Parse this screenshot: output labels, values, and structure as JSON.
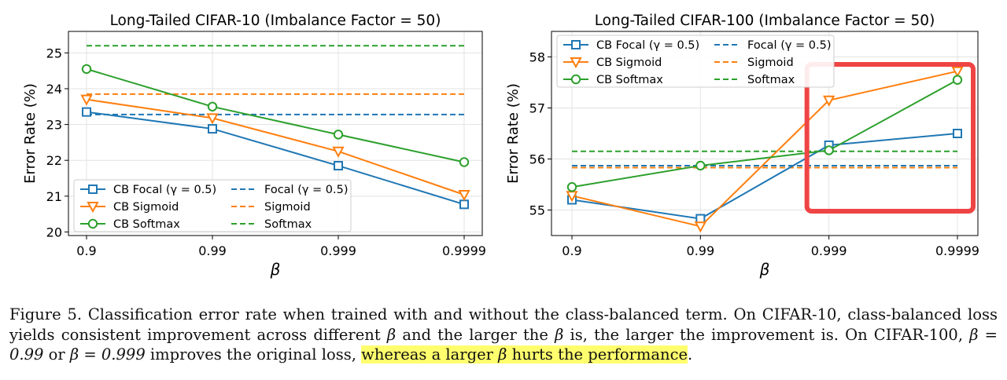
{
  "colors": {
    "focal": "#1f77b4",
    "sigmoid": "#ff7f0e",
    "softmax": "#2ca02c",
    "highlight_box": "#ef4444",
    "caption_highlight": "#ffff6e"
  },
  "chart_data": [
    {
      "type": "line",
      "title": "Long-Tailed CIFAR-10 (Imbalance Factor = 50)",
      "xlabel": "β",
      "ylabel": "Error Rate (%)",
      "x": [
        "0.9",
        "0.99",
        "0.999",
        "0.9999"
      ],
      "ylim": [
        19.9,
        25.6
      ],
      "yticks": [
        20,
        21,
        22,
        23,
        24,
        25
      ],
      "grid": true,
      "legend": "lower-left",
      "series": [
        {
          "name": "CB Focal (γ = 0.5)",
          "key": "focal",
          "marker": "square",
          "values": [
            23.35,
            22.88,
            21.85,
            20.77
          ]
        },
        {
          "name": "CB Sigmoid",
          "key": "sigmoid",
          "marker": "triangle-down",
          "values": [
            23.7,
            23.18,
            22.25,
            21.04
          ]
        },
        {
          "name": "CB Softmax",
          "key": "softmax",
          "marker": "circle",
          "values": [
            24.55,
            23.5,
            22.72,
            21.95
          ]
        }
      ],
      "baselines": [
        {
          "name": "Focal (γ = 0.5)",
          "key": "focal",
          "value": 23.28
        },
        {
          "name": "Sigmoid",
          "key": "sigmoid",
          "value": 23.85
        },
        {
          "name": "Softmax",
          "key": "softmax",
          "value": 25.2
        }
      ]
    },
    {
      "type": "line",
      "title": "Long-Tailed CIFAR-100 (Imbalance Factor = 50)",
      "xlabel": "β",
      "ylabel": "Error Rate (%)",
      "x": [
        "0.9",
        "0.99",
        "0.999",
        "0.9999"
      ],
      "ylim": [
        54.5,
        58.5
      ],
      "yticks": [
        55,
        56,
        57,
        58
      ],
      "grid": true,
      "legend": "upper-left",
      "highlight": {
        "x_from": "0.999",
        "x_to": "0.9999"
      },
      "series": [
        {
          "name": "CB Focal (γ = 0.5)",
          "key": "focal",
          "marker": "square",
          "values": [
            55.2,
            54.83,
            56.27,
            56.5
          ]
        },
        {
          "name": "CB Sigmoid",
          "key": "sigmoid",
          "marker": "triangle-down",
          "values": [
            55.28,
            54.68,
            57.15,
            57.72
          ]
        },
        {
          "name": "CB Softmax",
          "key": "softmax",
          "marker": "circle",
          "values": [
            55.45,
            55.87,
            56.17,
            57.55
          ]
        }
      ],
      "baselines": [
        {
          "name": "Focal (γ = 0.5)",
          "key": "focal",
          "value": 55.87
        },
        {
          "name": "Sigmoid",
          "key": "sigmoid",
          "value": 55.83
        },
        {
          "name": "Softmax",
          "key": "softmax",
          "value": 56.15
        }
      ]
    }
  ],
  "caption": {
    "label": "Figure 5.",
    "part1": " Classification error rate when trained with and without the class-balanced term.  On CIFAR-10, class-balanced loss yields consistent improvement across different ",
    "beta1": "β",
    "part2": " and the larger the ",
    "beta2": "β",
    "part3": " is, the larger the improvement is. On CIFAR-100, ",
    "eq1": "β = 0.99",
    "or": " or ",
    "eq2": "β = 0.999",
    "part4": " improves the original loss, ",
    "highlight_a": "whereas a larger ",
    "highlight_beta": "β",
    "highlight_b": " hurts the performance",
    "end": "."
  }
}
